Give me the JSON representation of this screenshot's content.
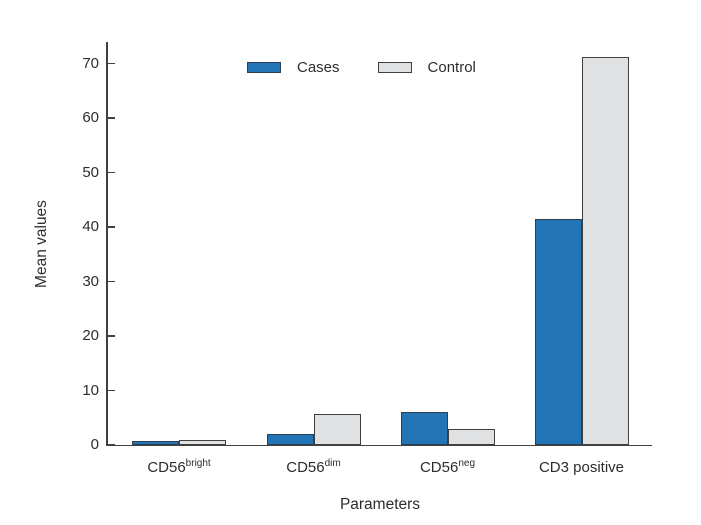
{
  "chart_data": {
    "type": "bar",
    "title": "",
    "xlabel": "Parameters",
    "ylabel": "Mean values",
    "categories": [
      {
        "base": "CD56",
        "sup": "bright",
        "label": "CD56^bright"
      },
      {
        "base": "CD56",
        "sup": "dim",
        "label": "CD56^dim"
      },
      {
        "base": "CD56",
        "sup": "neg",
        "label": "CD56^neg"
      },
      {
        "base": "CD3 positive",
        "sup": "",
        "label": "CD3 positive"
      }
    ],
    "series": [
      {
        "name": "Cases",
        "fill": "#2274b5",
        "edge": "#2e3f52",
        "values": [
          0.7,
          2.0,
          6.0,
          41.5
        ]
      },
      {
        "name": "Control",
        "fill": "#e0e1e2",
        "edge": "#404040",
        "values": [
          0.9,
          5.6,
          2.9,
          71.2
        ]
      }
    ],
    "yticks": [
      0,
      10,
      20,
      30,
      40,
      50,
      60,
      70
    ],
    "ylim": [
      0,
      74
    ],
    "grid": false,
    "legend_position": "top-center-inside"
  },
  "colors": {
    "axis": "#404040",
    "text": "#2d2d2d",
    "background": "#ffffff"
  }
}
